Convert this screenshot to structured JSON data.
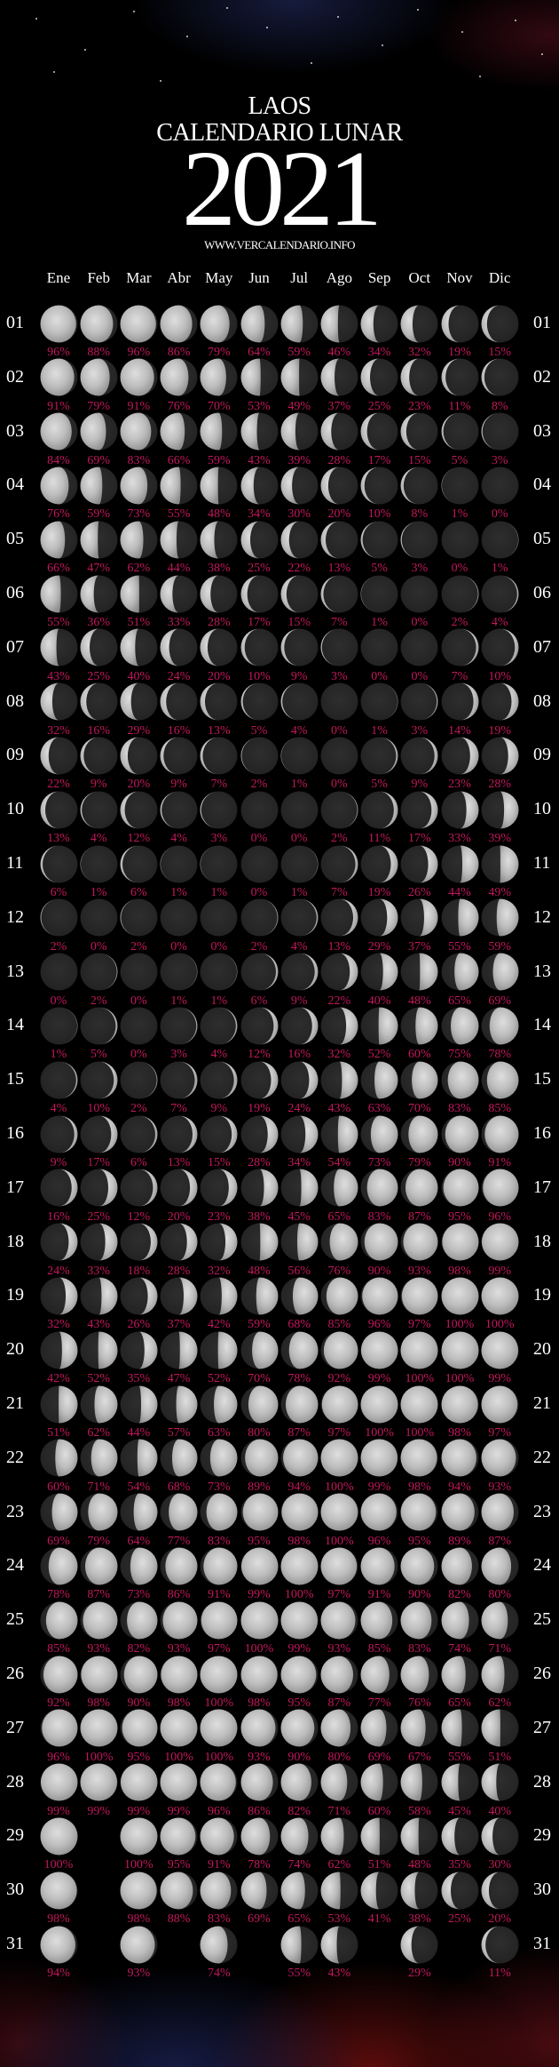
{
  "header": {
    "country": "LAOS",
    "subtitle": "CALENDARIO LUNAR",
    "year": "2021",
    "url": "WWW.VERCALENDARIO.INFO"
  },
  "colors": {
    "background": "#000000",
    "percent_text": "#c2185b",
    "moon_dark": "#2b2b2b",
    "moon_lit": "#c9c9c9"
  },
  "months": [
    "Ene",
    "Feb",
    "Mar",
    "Abr",
    "May",
    "Jun",
    "Jul",
    "Ago",
    "Sep",
    "Oct",
    "Nov",
    "Dic"
  ],
  "rows": [
    {
      "day": "01",
      "values": [
        "96%",
        "88%",
        "96%",
        "86%",
        "79%",
        "64%",
        "59%",
        "46%",
        "34%",
        "32%",
        "19%",
        "15%"
      ]
    },
    {
      "day": "02",
      "values": [
        "91%",
        "79%",
        "91%",
        "76%",
        "70%",
        "53%",
        "49%",
        "37%",
        "25%",
        "23%",
        "11%",
        "8%"
      ]
    },
    {
      "day": "03",
      "values": [
        "84%",
        "69%",
        "83%",
        "66%",
        "59%",
        "43%",
        "39%",
        "28%",
        "17%",
        "15%",
        "5%",
        "3%"
      ]
    },
    {
      "day": "04",
      "values": [
        "76%",
        "59%",
        "73%",
        "55%",
        "48%",
        "34%",
        "30%",
        "20%",
        "10%",
        "8%",
        "1%",
        "0%"
      ]
    },
    {
      "day": "05",
      "values": [
        "66%",
        "47%",
        "62%",
        "44%",
        "38%",
        "25%",
        "22%",
        "13%",
        "5%",
        "3%",
        "0%",
        "1%"
      ]
    },
    {
      "day": "06",
      "values": [
        "55%",
        "36%",
        "51%",
        "33%",
        "28%",
        "17%",
        "15%",
        "7%",
        "1%",
        "0%",
        "2%",
        "4%"
      ]
    },
    {
      "day": "07",
      "values": [
        "43%",
        "25%",
        "40%",
        "24%",
        "20%",
        "10%",
        "9%",
        "3%",
        "0%",
        "0%",
        "7%",
        "10%"
      ]
    },
    {
      "day": "08",
      "values": [
        "32%",
        "16%",
        "29%",
        "16%",
        "13%",
        "5%",
        "4%",
        "0%",
        "1%",
        "3%",
        "14%",
        "19%"
      ]
    },
    {
      "day": "09",
      "values": [
        "22%",
        "9%",
        "20%",
        "9%",
        "7%",
        "2%",
        "1%",
        "0%",
        "5%",
        "9%",
        "23%",
        "28%"
      ]
    },
    {
      "day": "10",
      "values": [
        "13%",
        "4%",
        "12%",
        "4%",
        "3%",
        "0%",
        "0%",
        "2%",
        "11%",
        "17%",
        "33%",
        "39%"
      ]
    },
    {
      "day": "11",
      "values": [
        "6%",
        "1%",
        "6%",
        "1%",
        "1%",
        "0%",
        "1%",
        "7%",
        "19%",
        "26%",
        "44%",
        "49%"
      ]
    },
    {
      "day": "12",
      "values": [
        "2%",
        "0%",
        "2%",
        "0%",
        "0%",
        "2%",
        "4%",
        "13%",
        "29%",
        "37%",
        "55%",
        "59%"
      ]
    },
    {
      "day": "13",
      "values": [
        "0%",
        "2%",
        "0%",
        "1%",
        "1%",
        "6%",
        "9%",
        "22%",
        "40%",
        "48%",
        "65%",
        "69%"
      ]
    },
    {
      "day": "14",
      "values": [
        "1%",
        "5%",
        "0%",
        "3%",
        "4%",
        "12%",
        "16%",
        "32%",
        "52%",
        "60%",
        "75%",
        "78%"
      ]
    },
    {
      "day": "15",
      "values": [
        "4%",
        "10%",
        "2%",
        "7%",
        "9%",
        "19%",
        "24%",
        "43%",
        "63%",
        "70%",
        "83%",
        "85%"
      ]
    },
    {
      "day": "16",
      "values": [
        "9%",
        "17%",
        "6%",
        "13%",
        "15%",
        "28%",
        "34%",
        "54%",
        "73%",
        "79%",
        "90%",
        "91%"
      ]
    },
    {
      "day": "17",
      "values": [
        "16%",
        "25%",
        "12%",
        "20%",
        "23%",
        "38%",
        "45%",
        "65%",
        "83%",
        "87%",
        "95%",
        "96%"
      ]
    },
    {
      "day": "18",
      "values": [
        "24%",
        "33%",
        "18%",
        "28%",
        "32%",
        "48%",
        "56%",
        "76%",
        "90%",
        "93%",
        "98%",
        "99%"
      ]
    },
    {
      "day": "19",
      "values": [
        "32%",
        "43%",
        "26%",
        "37%",
        "42%",
        "59%",
        "68%",
        "85%",
        "96%",
        "97%",
        "100%",
        "100%"
      ]
    },
    {
      "day": "20",
      "values": [
        "42%",
        "52%",
        "35%",
        "47%",
        "52%",
        "70%",
        "78%",
        "92%",
        "99%",
        "100%",
        "100%",
        "99%"
      ]
    },
    {
      "day": "21",
      "values": [
        "51%",
        "62%",
        "44%",
        "57%",
        "63%",
        "80%",
        "87%",
        "97%",
        "100%",
        "100%",
        "98%",
        "97%"
      ]
    },
    {
      "day": "22",
      "values": [
        "60%",
        "71%",
        "54%",
        "68%",
        "73%",
        "89%",
        "94%",
        "100%",
        "99%",
        "98%",
        "94%",
        "93%"
      ]
    },
    {
      "day": "23",
      "values": [
        "69%",
        "79%",
        "64%",
        "77%",
        "83%",
        "95%",
        "98%",
        "100%",
        "96%",
        "95%",
        "89%",
        "87%"
      ]
    },
    {
      "day": "24",
      "values": [
        "78%",
        "87%",
        "73%",
        "86%",
        "91%",
        "99%",
        "100%",
        "97%",
        "91%",
        "90%",
        "82%",
        "80%"
      ]
    },
    {
      "day": "25",
      "values": [
        "85%",
        "93%",
        "82%",
        "93%",
        "97%",
        "100%",
        "99%",
        "93%",
        "85%",
        "83%",
        "74%",
        "71%"
      ]
    },
    {
      "day": "26",
      "values": [
        "92%",
        "98%",
        "90%",
        "98%",
        "100%",
        "98%",
        "95%",
        "87%",
        "77%",
        "76%",
        "65%",
        "62%"
      ]
    },
    {
      "day": "27",
      "values": [
        "96%",
        "100%",
        "95%",
        "100%",
        "100%",
        "93%",
        "90%",
        "80%",
        "69%",
        "67%",
        "55%",
        "51%"
      ]
    },
    {
      "day": "28",
      "values": [
        "99%",
        "99%",
        "99%",
        "99%",
        "96%",
        "86%",
        "82%",
        "71%",
        "60%",
        "58%",
        "45%",
        "40%"
      ]
    },
    {
      "day": "29",
      "values": [
        "100%",
        null,
        "100%",
        "95%",
        "91%",
        "78%",
        "74%",
        "62%",
        "51%",
        "48%",
        "35%",
        "30%"
      ]
    },
    {
      "day": "30",
      "values": [
        "98%",
        null,
        "98%",
        "88%",
        "83%",
        "69%",
        "65%",
        "53%",
        "41%",
        "38%",
        "25%",
        "20%"
      ]
    },
    {
      "day": "31",
      "values": [
        "94%",
        null,
        "93%",
        null,
        "74%",
        null,
        "55%",
        "43%",
        null,
        "29%",
        null,
        "11%"
      ]
    }
  ]
}
